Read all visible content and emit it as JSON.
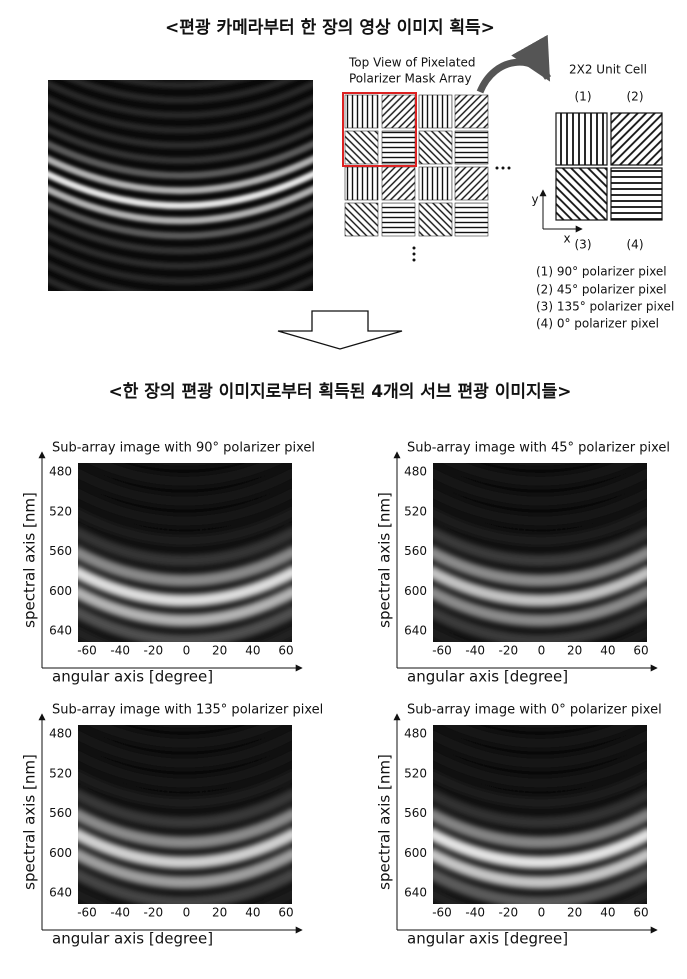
{
  "header": {
    "title": "<편광 카메라부터 한 장의 영상 이미지 획득>"
  },
  "mask": {
    "title_lines": [
      "Top View of Pixelated",
      "Polarizer Mask Array"
    ]
  },
  "unit_cell": {
    "title": "2X2 Unit Cell",
    "labels": [
      "(1)",
      "(2)",
      "(3)",
      "(4)"
    ],
    "axis_x": "x",
    "axis_y": "y",
    "legend": [
      "(1) 90° polarizer pixel",
      "(2) 45° polarizer pixel",
      "(3) 135° polarizer pixel",
      "(4) 0° polarizer pixel"
    ]
  },
  "section2": {
    "title": "<한 장의 편광 이미지로부터 획득된 4개의 서브 편광 이미지들>"
  },
  "axes": {
    "ylabel": "spectral axis [nm]",
    "xlabel": "angular axis [degree]",
    "yticks": [
      480,
      520,
      560,
      600,
      640
    ],
    "xticks": [
      -60,
      -40,
      -20,
      0,
      20,
      40,
      60
    ]
  },
  "panels": [
    {
      "title": "Sub-array image with 90° polarizer pixel"
    },
    {
      "title": "Sub-array image with 45° polarizer pixel"
    },
    {
      "title": "Sub-array image with 135° polarizer pixel"
    },
    {
      "title": "Sub-array image with 0° polarizer pixel"
    }
  ]
}
